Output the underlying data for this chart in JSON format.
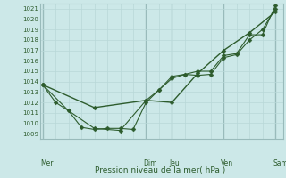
{
  "xlabel": "Pression niveau de la mer( hPa )",
  "background_color": "#cce8e8",
  "grid_color_minor": "#b8d8d8",
  "grid_color_major": "#99bbbb",
  "line_color": "#2d5c2d",
  "ylim": [
    1008.5,
    1021.5
  ],
  "yticks": [
    1009,
    1010,
    1011,
    1012,
    1013,
    1014,
    1015,
    1016,
    1017,
    1018,
    1019,
    1020,
    1021
  ],
  "day_labels": [
    "Mer",
    "Dim",
    "Jeu",
    "Ven",
    "Sam"
  ],
  "day_positions": [
    0.0,
    4.0,
    5.0,
    7.0,
    9.0
  ],
  "line1_x": [
    0,
    0.5,
    1.0,
    1.5,
    2.0,
    2.5,
    3.0,
    3.5,
    4.0,
    4.5,
    5.0,
    5.5,
    6.0,
    6.5,
    7.0,
    7.5,
    8.0,
    8.5,
    9.0
  ],
  "line1_y": [
    1013.7,
    1012.0,
    1011.2,
    1009.6,
    1009.4,
    1009.5,
    1009.5,
    1009.4,
    1012.0,
    1013.2,
    1014.3,
    1014.7,
    1014.6,
    1014.7,
    1016.3,
    1016.6,
    1018.0,
    1019.0,
    1021.0
  ],
  "line2_x": [
    0,
    1.0,
    2.0,
    3.0,
    4.0,
    4.5,
    5.0,
    5.5,
    6.0,
    6.5,
    7.0,
    7.5,
    8.0,
    8.5,
    9.0
  ],
  "line2_y": [
    1013.7,
    1011.2,
    1009.5,
    1009.3,
    1012.2,
    1013.2,
    1014.5,
    1014.7,
    1015.0,
    1015.0,
    1016.5,
    1016.7,
    1018.5,
    1018.5,
    1021.3
  ],
  "line3_x": [
    0,
    2.0,
    4.0,
    5.0,
    6.0,
    7.0,
    8.0,
    9.0
  ],
  "line3_y": [
    1013.7,
    1011.5,
    1012.2,
    1012.0,
    1014.8,
    1017.0,
    1018.7,
    1020.7
  ],
  "xlim": [
    -0.1,
    9.3
  ],
  "n_minor_x": 0.5
}
